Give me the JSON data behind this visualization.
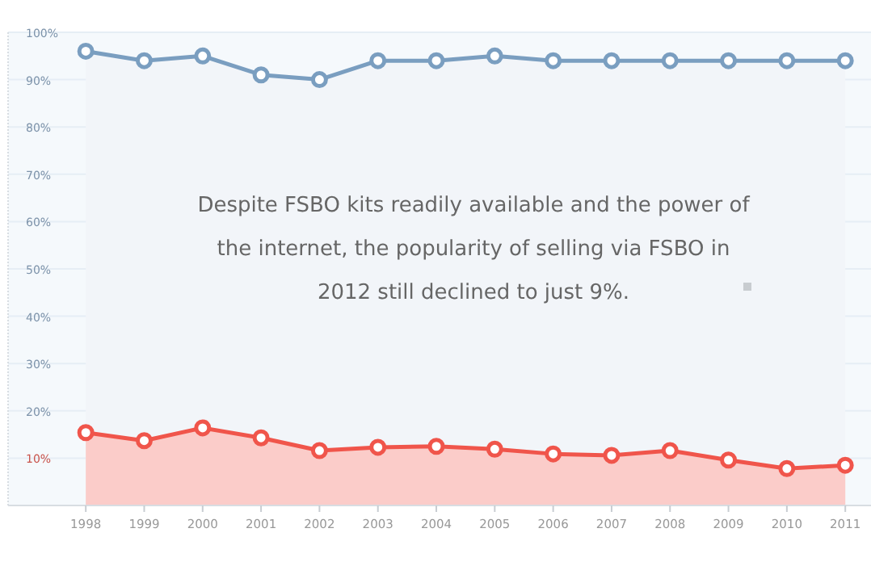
{
  "chart_data": {
    "type": "area",
    "x": [
      1998,
      1999,
      2000,
      2001,
      2002,
      2003,
      2004,
      2005,
      2006,
      2007,
      2008,
      2009,
      2010,
      2011
    ],
    "series": [
      {
        "color": "#7a9ec0",
        "values": [
          96,
          94,
          95,
          91,
          90,
          94,
          94,
          95,
          94,
          94,
          94,
          94,
          94,
          94
        ]
      },
      {
        "color": "#f0554b",
        "values": [
          15.4,
          13.7,
          16.4,
          14.3,
          11.6,
          12.3,
          12.5,
          11.9,
          10.9,
          10.6,
          11.6,
          9.6,
          7.8,
          8.5
        ]
      }
    ],
    "xlim": [
      1996.67,
      2011.44
    ],
    "xticks": [
      1998,
      1999,
      2000,
      2001,
      2002,
      2003,
      2004,
      2005,
      2006,
      2007,
      2008,
      2009,
      2010,
      2011
    ],
    "ylim": [
      0,
      100
    ],
    "yticks": [
      {
        "value": 10,
        "label": "10%"
      },
      {
        "value": 20,
        "label": "20%"
      },
      {
        "value": 30,
        "label": "30%"
      },
      {
        "value": 40,
        "label": "40%"
      },
      {
        "value": 50,
        "label": "50%"
      },
      {
        "value": 60,
        "label": "60%"
      },
      {
        "value": 70,
        "label": "70%"
      },
      {
        "value": 80,
        "label": "80%"
      },
      {
        "value": 90,
        "label": "90%"
      },
      {
        "value": 100,
        "label": "100%"
      }
    ],
    "grid": "y",
    "marker": "circle",
    "line_style": "solid",
    "annotations": [
      "Despite FSBO kits readily available and the power of the internet, the popularity of selling via FSBO in 2012 still declined to just 9%."
    ]
  }
}
